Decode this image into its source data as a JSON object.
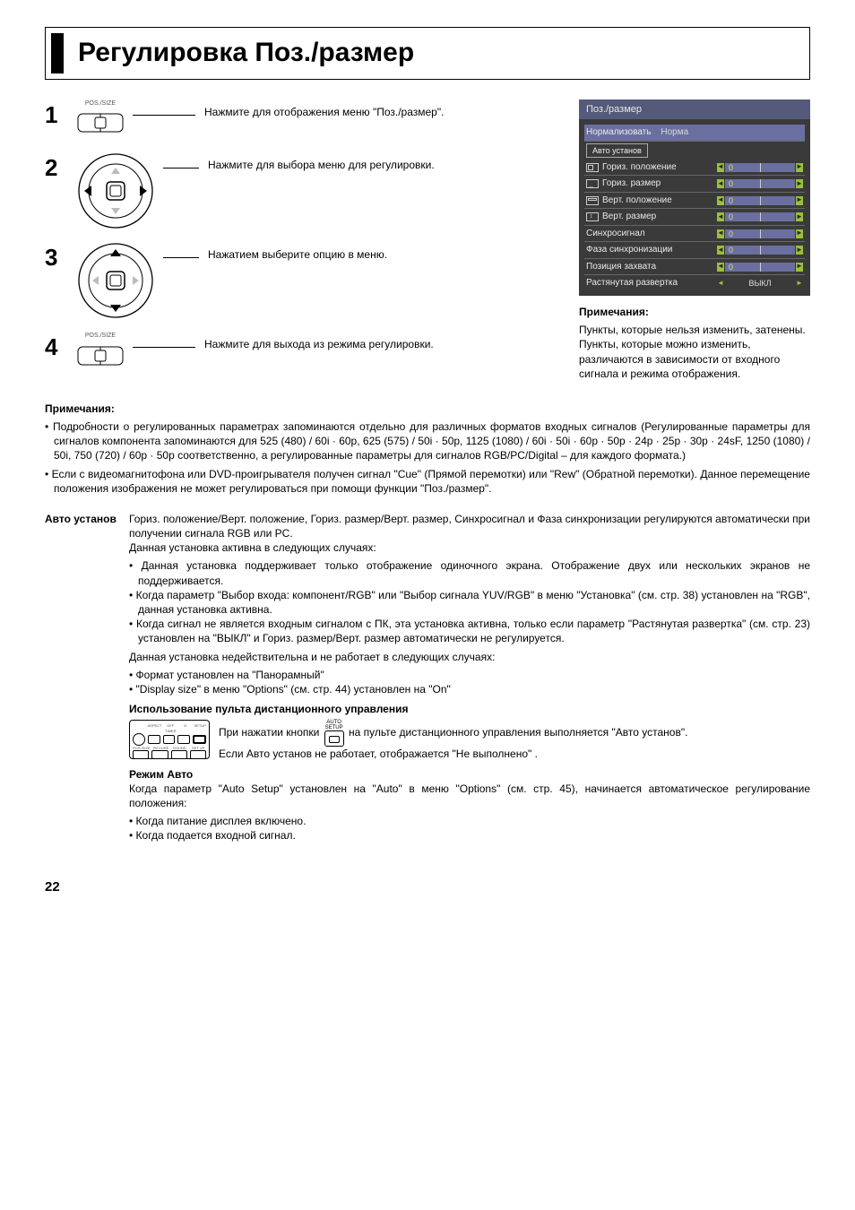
{
  "title": "Регулировка Поз./размер",
  "steps": [
    {
      "num": "1",
      "icon": "button",
      "icon_label": "POS./SIZE",
      "desc": "Нажмите для отображения меню \"Поз./размер\"."
    },
    {
      "num": "2",
      "icon": "dpad-lr",
      "desc": "Нажмите для выбора меню для регулировки."
    },
    {
      "num": "3",
      "icon": "dpad-ud",
      "desc": "Нажатием выберите опцию в меню."
    },
    {
      "num": "4",
      "icon": "button",
      "icon_label": "POS./SIZE",
      "desc": "Нажмите для выхода из режима регулировки."
    }
  ],
  "osd": {
    "title": "Поз./размер",
    "normalize_label": "Нормализовать",
    "normalize_value": "Норма",
    "auto_button": "Авто установ",
    "rows": [
      {
        "icon": "h-pos",
        "label": "Гориз. положение",
        "val": "0"
      },
      {
        "icon": "h-size",
        "label": "Гориз. размер",
        "val": "0"
      },
      {
        "icon": "v-pos",
        "label": "Верт. положение",
        "val": "0"
      },
      {
        "icon": "v-size",
        "label": "Верт. размер",
        "val": "0"
      },
      {
        "icon": "",
        "label": "Синхросигнал",
        "val": "0"
      },
      {
        "icon": "",
        "label": "Фаза синхронизации",
        "val": "0"
      },
      {
        "icon": "",
        "label": "Позиция захвата",
        "val": "0"
      }
    ],
    "overscan_label": "Растянутая развертка",
    "overscan_value": "ВЫКЛ",
    "colors": {
      "panel_bg": "#3a3a3a",
      "title_bg": "#555a7a",
      "highlight_bg": "#6a6fa0",
      "arrow_bg": "#9bbf3b",
      "value_color": "#cfe07a"
    }
  },
  "right_note_head": "Примечания:",
  "right_note_body": "Пункты, которые нельзя изменить, затенены.\nПункты, которые можно изменить, различаются в зависимости от входного сигнала и режима отображения.",
  "notes_head": "Примечания:",
  "note_items": [
    "Подробности о регулированных параметрах запоминаются отдельно для различных форматов входных сигналов (Регулированные параметры для сигналов компонента запоминаются для 525 (480) / 60i · 60p, 625 (575) / 50i · 50p, 1125 (1080) / 60i · 50i · 60p · 50p · 24p · 25p · 30p · 24sF, 1250 (1080) / 50i, 750 (720) / 60p · 50p соответственно, а регулированные параметры для сигналов RGB/PC/Digital – для каждого формата.)",
    "Если с видеомагнитофона или DVD-проигрывателя получен сигнал \"Cue\" (Прямой перемотки) или \"Rew\" (Обратной перемотки). Данное перемещение положения изображения не может регулироваться при помощи функции \"Поз./размер\"."
  ],
  "auto": {
    "label": "Авто установ",
    "lead": "Гориз. положение/Верт. положение, Гориз. размер/Верт. размер, Синхросигнал и Фаза синхронизации регулируются автоматически при получении сигнала RGB или PC.",
    "active_intro": "Данная установка активна в следующих случаях:",
    "active_items": [
      "Данная установка поддерживает только отображение одиночного экрана. Отображение двух или нескольких экранов не поддерживается.",
      "Когда параметр \"Выбор входа: компонент/RGB\" или \"Выбор сигнала YUV/RGB\" в меню \"Установка\" (см. стр. 38) установлен на \"RGB\", данная установка активна.",
      "Когда сигнал не является входным сигналом с ПК, эта установка активна, только если параметр \"Растянутая развертка\" (см. стр. 23) установлен на \"ВЫКЛ\" и Гориз. размер/Верт. размер автоматически не регулируется."
    ],
    "invalid_intro": "Данная установка недействительна и не работает в следующих случаях:",
    "invalid_items": [
      "Формат установлен на \"Панорамный\"",
      "\"Display size\" в меню \"Options\" (см. стр. 44) установлен на \"On\""
    ],
    "remote_head": "Использование пульта дистанционного управления",
    "remote_icon_top": "AUTO",
    "remote_icon_bottom": "SETUP",
    "remote_line1_a": "При нажатии кнопки ",
    "remote_line1_b": " на пульте дистанционного управления выполняется \"Авто установ\".",
    "remote_line2": "Если Авто установ не работает, отображается \"Не выполнено\" .",
    "mode_head": "Режим Авто",
    "mode_body": "Когда параметр \"Auto Setup\" установлен на \"Auto\" в меню \"Options\" (см. стр. 45), начинается автоматическое регулирование положения:",
    "mode_items": [
      "Когда питание дисплея включено.",
      "Когда подается входной сигнал."
    ],
    "remote_thumb_labels": {
      "row1": [
        "ASPECT",
        "OFF TIMER",
        "N",
        "SETUP"
      ],
      "row2": [
        "POS./SIZE",
        "PICTURE",
        "SOUND",
        "SET UP"
      ]
    }
  },
  "page_number": "22"
}
